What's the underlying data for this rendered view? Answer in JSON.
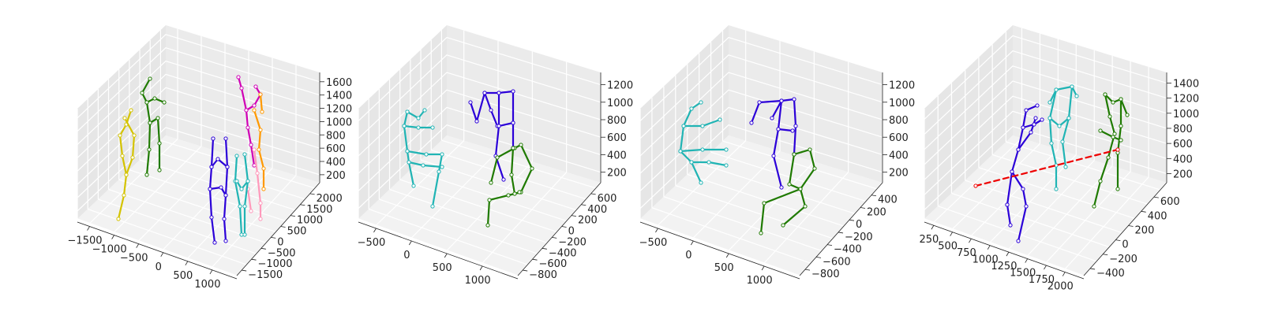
{
  "colors": {
    "pane_left": "#e6e6e6",
    "pane_right": "#ebebeb",
    "pane_floor": "#f2f2f2",
    "grid": "#ffffff",
    "axis": "#222222"
  },
  "chart_data": [
    {
      "type": "3d-skeleton",
      "title": "",
      "grid": true,
      "xlabel": "",
      "ylabel": "",
      "zlabel": "",
      "x_ticks": [
        "−1500",
        "−1000",
        "−500",
        "0",
        "500",
        "1000"
      ],
      "y_ticks": [
        "−1500",
        "−1000",
        "−500",
        "0",
        "500",
        "1000",
        "1500",
        "2000"
      ],
      "z_ticks": [
        "200",
        "400",
        "600",
        "800",
        "1000",
        "1200",
        "1400",
        "1600"
      ],
      "skeletons": [
        {
          "color": "#d4c300",
          "joint_color": "#d4c300"
        },
        {
          "color": "#1f7a00",
          "joint_color": "#1f7a00"
        },
        {
          "color": "#d000b5",
          "joint_color": "#d000b5"
        },
        {
          "color": "#ff9900",
          "joint_color": "#ff9900"
        },
        {
          "color": "#ff99bb",
          "joint_color": "#ff99bb"
        },
        {
          "color": "#2b00d8",
          "joint_color": "#2b00d8"
        },
        {
          "color": "#20b4b4",
          "joint_color": "#20b4b4"
        }
      ]
    },
    {
      "type": "3d-skeleton",
      "title": "",
      "grid": true,
      "xlabel": "",
      "ylabel": "",
      "zlabel": "",
      "x_ticks": [
        "−500",
        "0",
        "500",
        "1000"
      ],
      "y_ticks": [
        "−800",
        "−600",
        "−400",
        "−200",
        "0",
        "200",
        "400",
        "600"
      ],
      "z_ticks": [
        "200",
        "400",
        "600",
        "800",
        "1000",
        "1200"
      ],
      "skeletons": [
        {
          "color": "#20b4b4",
          "joint_color": "#20b4b4"
        },
        {
          "color": "#2b00d8",
          "joint_color": "#2b00d8"
        },
        {
          "color": "#1f7a00",
          "joint_color": "#1f7a00"
        }
      ]
    },
    {
      "type": "3d-skeleton",
      "title": "",
      "grid": true,
      "xlabel": "",
      "ylabel": "",
      "zlabel": "",
      "x_ticks": [
        "−500",
        "0",
        "500",
        "1000"
      ],
      "y_ticks": [
        "−800",
        "−600",
        "−400",
        "−200",
        "0",
        "200",
        "400"
      ],
      "z_ticks": [
        "200",
        "400",
        "600",
        "800",
        "1000",
        "1200"
      ],
      "skeletons": [
        {
          "color": "#20b4b4",
          "joint_color": "#20b4b4"
        },
        {
          "color": "#2b00d8",
          "joint_color": "#2b00d8"
        },
        {
          "color": "#1f7a00",
          "joint_color": "#1f7a00"
        }
      ]
    },
    {
      "type": "3d-skeleton",
      "title": "",
      "grid": true,
      "xlabel": "",
      "ylabel": "",
      "zlabel": "",
      "x_ticks": [
        "250",
        "500",
        "750",
        "1000",
        "1250",
        "1500",
        "1750",
        "2000"
      ],
      "y_ticks": [
        "−400",
        "−200",
        "0",
        "200",
        "400",
        "600"
      ],
      "z_ticks": [
        "200",
        "400",
        "600",
        "800",
        "1000",
        "1200",
        "1400"
      ],
      "skeletons": [
        {
          "color": "#2b00d8",
          "joint_color": "#2b00d8"
        },
        {
          "color": "#20b4b4",
          "joint_color": "#20b4b4"
        },
        {
          "color": "#1f7a00",
          "joint_color": "#1f7a00"
        },
        {
          "color": "#ee0000",
          "joint_color": "#ee0000",
          "style": "dashed"
        }
      ]
    }
  ]
}
